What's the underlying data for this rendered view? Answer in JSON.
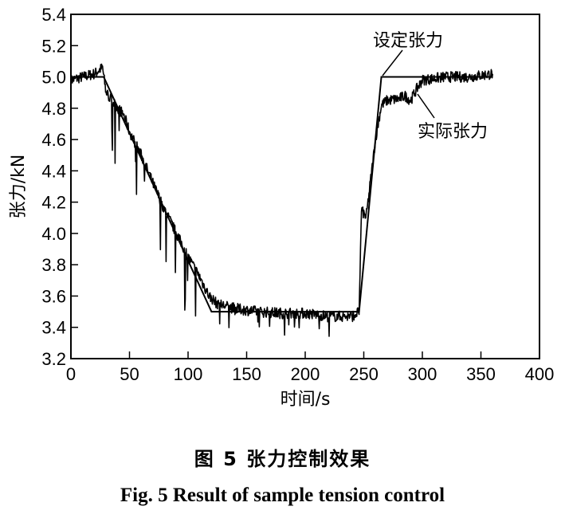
{
  "chart_data": {
    "type": "line",
    "xlabel": "时间/s",
    "ylabel": "张力/kN",
    "xlim": [
      0,
      400
    ],
    "ylim": [
      3.2,
      5.4
    ],
    "xticks": [
      "0",
      "50",
      "100",
      "150",
      "200",
      "250",
      "300",
      "350",
      "400"
    ],
    "yticks": [
      "3.2",
      "3.4",
      "3.6",
      "3.8",
      "4.0",
      "4.2",
      "4.4",
      "4.6",
      "4.8",
      "5.0",
      "5.2",
      "5.4"
    ],
    "grid": false,
    "annotations": [
      "设定张力",
      "实际张力"
    ],
    "series": [
      {
        "name": "设定张力",
        "color": "#000000",
        "x": [
          0,
          28,
          120,
          246,
          265,
          360
        ],
        "y": [
          5.0,
          5.0,
          3.5,
          3.5,
          5.0,
          5.0
        ]
      },
      {
        "name": "实际张力",
        "color": "#000000",
        "noise": 0.035,
        "x": [
          0,
          10,
          20,
          27,
          30,
          35,
          40,
          45,
          50,
          60,
          70,
          80,
          90,
          100,
          110,
          118,
          125,
          140,
          160,
          180,
          200,
          220,
          240,
          246,
          248,
          252,
          256,
          260,
          265,
          270,
          280,
          285,
          290,
          295,
          300,
          320,
          340,
          360
        ],
        "y": [
          4.98,
          5.0,
          5.02,
          5.06,
          4.9,
          4.85,
          4.8,
          4.76,
          4.65,
          4.5,
          4.32,
          4.15,
          4.0,
          3.85,
          3.72,
          3.6,
          3.55,
          3.52,
          3.5,
          3.49,
          3.49,
          3.47,
          3.47,
          3.5,
          4.15,
          4.1,
          4.35,
          4.6,
          4.82,
          4.85,
          4.86,
          4.88,
          4.85,
          4.92,
          4.98,
          5.0,
          5.0,
          5.02
        ]
      }
    ]
  },
  "caption": {
    "cn": "图 5    张力控制效果",
    "en": "Fig. 5    Result of sample tension control"
  }
}
